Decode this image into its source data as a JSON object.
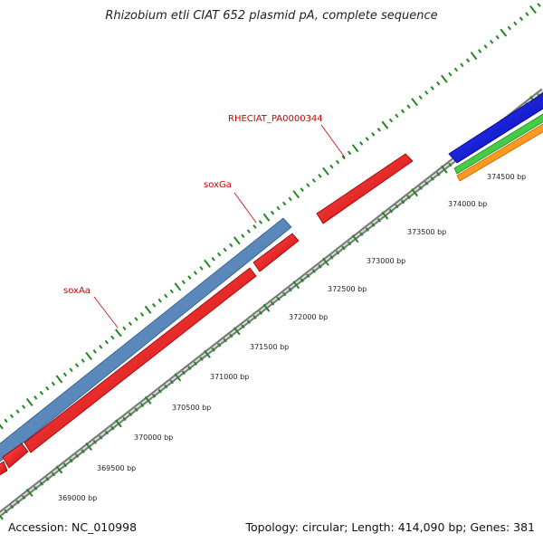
{
  "title": "Rhizobium etli CIAT 652 plasmid pA, complete sequence",
  "footer": {
    "accession": "Accession: NC_010998",
    "summary": "Topology: circular; Length: 414,090 bp; Genes: 381"
  },
  "gene_labels": [
    {
      "name": "RHECIAT_PA0000344"
    },
    {
      "name": "soxGa"
    },
    {
      "name": "soxAa"
    }
  ],
  "ticks": [
    {
      "label": "369000 bp"
    },
    {
      "label": "369500 bp"
    },
    {
      "label": "370000 bp"
    },
    {
      "label": "370500 bp"
    },
    {
      "label": "371000 bp"
    },
    {
      "label": "371500 bp"
    },
    {
      "label": "372000 bp"
    },
    {
      "label": "372500 bp"
    },
    {
      "label": "373000 bp"
    },
    {
      "label": "373500 bp"
    },
    {
      "label": "374000 bp"
    },
    {
      "label": "374500 bp"
    }
  ],
  "colors": {
    "gene_forward": "#ff0000",
    "gene_steelblue": "#4a7fb5",
    "gene_blue": "#0000ee",
    "gene_green": "#33bb33",
    "gene_orange": "#ff8800",
    "backbone": "#888888",
    "tick": "#228822",
    "label": "#cc0000"
  }
}
